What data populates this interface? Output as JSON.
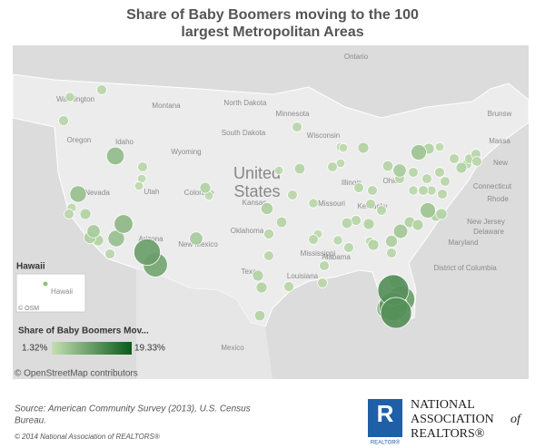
{
  "title": "Share of Baby Boomers moving to the 100 largest Metropolitan Areas",
  "map": {
    "place_labels": [
      "Ontario",
      "Washington",
      "Montana",
      "North Dakota",
      "Minnesota",
      "South Dakota",
      "Oregon",
      "Idaho",
      "Wyoming",
      "Wisconsin",
      "Nevada",
      "Utah",
      "Colorado",
      "Illinois",
      "Kansas",
      "Missouri",
      "Oklahoma",
      "New Mexico",
      "Arizona",
      "Texas",
      "Louisiana",
      "Alabama",
      "Mississippi",
      "Kentucky",
      "Ohio",
      "Mexico",
      "Brunsw",
      "Massa",
      "New",
      "Rhode",
      "Connecticut",
      "New Jersey",
      "Delaware",
      "Maryland",
      "District of Columbia"
    ],
    "country_label_1": "United",
    "country_label_2": "States",
    "inset_title": "Hawaii",
    "inset_label": "Hawaii",
    "osm_mark": "© OSM",
    "attribution": "© OpenStreetMap contributors",
    "metro_shares": [
      2.5,
      2.3,
      2.6,
      6,
      5.5,
      2.2,
      2.5,
      3,
      4,
      3.5,
      3,
      5.5,
      6.5,
      2.5,
      10,
      9,
      2.5,
      2,
      2,
      3,
      2,
      4,
      3.5,
      2.8,
      2.6,
      2.5,
      3,
      3,
      2.8,
      2.6,
      2.5,
      2.5,
      2.5,
      2,
      2.5,
      2.8,
      2.6,
      3,
      3,
      2,
      3.5,
      4.5,
      3,
      3,
      5,
      3,
      3,
      2.5,
      4,
      12,
      10,
      12,
      11,
      8,
      3,
      2.5,
      2.8,
      2,
      2.5,
      2.5,
      2,
      2,
      2,
      3,
      2.5,
      2.5,
      2.5,
      2.5,
      2.8,
      4,
      2.5,
      2.5,
      5,
      3,
      2,
      2.5,
      2.5,
      2.5,
      2.5,
      2.5,
      3,
      2.5,
      2.5,
      2.5,
      2.5,
      2.5,
      2.3,
      2.3,
      2.3,
      2.3
    ]
  },
  "legend": {
    "title": "Share of Baby Boomers Mov...",
    "min": {
      "value": 1.32,
      "label": "1.32%"
    },
    "max": {
      "value": 19.33,
      "label": "19.33%"
    }
  },
  "footer": {
    "source": "Source: American Community Survey (2013), U.S. Census Bureau.",
    "copyright": "© 2014 National Association of REALTORS®",
    "logo_line_1": "NATIONAL",
    "logo_line_2": "ASSOCIATION",
    "logo_of": "of",
    "logo_line_3": "REALTORS®",
    "logo_badge": "REALTOR®"
  }
}
